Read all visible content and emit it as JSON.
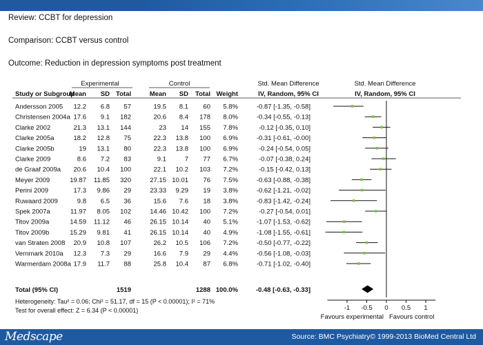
{
  "header": {
    "review": "Review: CCBT for depression",
    "comparison": "Comparison: CCBT versus control",
    "outcome": "Outcome: Reduction in depression symptoms post treatment"
  },
  "table": {
    "group_experimental": "Experimental",
    "group_control": "Control",
    "smd_title": "Std. Mean Difference",
    "smd_subtitle": "IV, Random, 95% CI",
    "plot_title": "Std. Mean Difference",
    "plot_subtitle": "IV, Random, 95% CI",
    "columns": [
      "Study or Subgroup",
      "Mean",
      "SD",
      "Total",
      "Mean",
      "SD",
      "Total",
      "Weight"
    ]
  },
  "chart_data": {
    "type": "forest",
    "studies": [
      {
        "name": "Andersson 2005",
        "exp_mean": "12.2",
        "exp_sd": "6.8",
        "exp_total": "57",
        "ctl_mean": "19.5",
        "ctl_sd": "8.1",
        "ctl_total": "60",
        "weight": "5.8%",
        "ci_text": "-0.87 [-1.35, -0.58]",
        "smd": -0.87,
        "lo": -1.35,
        "hi": -0.58
      },
      {
        "name": "Christensen 2004a",
        "exp_mean": "17.6",
        "exp_sd": "9.1",
        "exp_total": "182",
        "ctl_mean": "20.6",
        "ctl_sd": "8.4",
        "ctl_total": "178",
        "weight": "8.0%",
        "ci_text": "-0.34 [-0.55, -0.13]",
        "smd": -0.34,
        "lo": -0.55,
        "hi": -0.13
      },
      {
        "name": "Clarke 2002",
        "exp_mean": "21.3",
        "exp_sd": "13.1",
        "exp_total": "144",
        "ctl_mean": "23",
        "ctl_sd": "14",
        "ctl_total": "155",
        "weight": "7.8%",
        "ci_text": "-0.12 [-0.35, 0.10]",
        "smd": -0.12,
        "lo": -0.35,
        "hi": 0.1
      },
      {
        "name": "Clarke 2005a",
        "exp_mean": "18.2",
        "exp_sd": "12.8",
        "exp_total": "75",
        "ctl_mean": "22.3",
        "ctl_sd": "13.8",
        "ctl_total": "100",
        "weight": "6.9%",
        "ci_text": "-0.31 [-0.61, -0.00]",
        "smd": -0.31,
        "lo": -0.61,
        "hi": 0.0
      },
      {
        "name": "Clarke 2005b",
        "exp_mean": "19",
        "exp_sd": "13.1",
        "exp_total": "80",
        "ctl_mean": "22.3",
        "ctl_sd": "13.8",
        "ctl_total": "100",
        "weight": "6.9%",
        "ci_text": "-0.24 [-0.54, 0.05]",
        "smd": -0.24,
        "lo": -0.54,
        "hi": 0.05
      },
      {
        "name": "Clarke 2009",
        "exp_mean": "8.6",
        "exp_sd": "7.2",
        "exp_total": "83",
        "ctl_mean": "9.1",
        "ctl_sd": "7",
        "ctl_total": "77",
        "weight": "6.7%",
        "ci_text": "-0.07 [-0.38, 0.24]",
        "smd": -0.07,
        "lo": -0.38,
        "hi": 0.24
      },
      {
        "name": "de Graaf 2009a",
        "exp_mean": "20.6",
        "exp_sd": "10.4",
        "exp_total": "100",
        "ctl_mean": "22.1",
        "ctl_sd": "10.2",
        "ctl_total": "103",
        "weight": "7.2%",
        "ci_text": "-0.15 [-0.42, 0.13]",
        "smd": -0.15,
        "lo": -0.42,
        "hi": 0.13
      },
      {
        "name": "Meyer 2009",
        "exp_mean": "19.87",
        "exp_sd": "11.85",
        "exp_total": "320",
        "ctl_mean": "27.15",
        "ctl_sd": "10.01",
        "ctl_total": "76",
        "weight": "7.5%",
        "ci_text": "-0.63 [-0.88, -0.38]",
        "smd": -0.63,
        "lo": -0.88,
        "hi": -0.38
      },
      {
        "name": "Perini 2009",
        "exp_mean": "17.3",
        "exp_sd": "9.86",
        "exp_total": "29",
        "ctl_mean": "23.33",
        "ctl_sd": "9.29",
        "ctl_total": "19",
        "weight": "3.8%",
        "ci_text": "-0.62 [-1.21, -0.02]",
        "smd": -0.62,
        "lo": -1.21,
        "hi": -0.02
      },
      {
        "name": "Ruwaard 2009",
        "exp_mean": "9.8",
        "exp_sd": "6.5",
        "exp_total": "36",
        "ctl_mean": "15.6",
        "ctl_sd": "7.6",
        "ctl_total": "18",
        "weight": "3.8%",
        "ci_text": "-0.83 [-1.42, -0.24]",
        "smd": -0.83,
        "lo": -1.42,
        "hi": -0.24
      },
      {
        "name": "Spek 2007a",
        "exp_mean": "11.97",
        "exp_sd": "8.05",
        "exp_total": "102",
        "ctl_mean": "14.46",
        "ctl_sd": "10.42",
        "ctl_total": "100",
        "weight": "7.2%",
        "ci_text": "-0.27 [-0.54, 0.01]",
        "smd": -0.27,
        "lo": -0.54,
        "hi": 0.01
      },
      {
        "name": "Titov 2009a",
        "exp_mean": "14.59",
        "exp_sd": "11.12",
        "exp_total": "46",
        "ctl_mean": "26.15",
        "ctl_sd": "10.14",
        "ctl_total": "40",
        "weight": "5.1%",
        "ci_text": "-1.07 [-1.53, -0.62]",
        "smd": -1.07,
        "lo": -1.53,
        "hi": -0.62
      },
      {
        "name": "Titov 2009b",
        "exp_mean": "15.29",
        "exp_sd": "9.81",
        "exp_total": "41",
        "ctl_mean": "26.15",
        "ctl_sd": "10.14",
        "ctl_total": "40",
        "weight": "4.9%",
        "ci_text": "-1.08 [-1.55, -0.61]",
        "smd": -1.08,
        "lo": -1.55,
        "hi": -0.61
      },
      {
        "name": "van Straten 2008",
        "exp_mean": "20.9",
        "exp_sd": "10.8",
        "exp_total": "107",
        "ctl_mean": "26.2",
        "ctl_sd": "10.5",
        "ctl_total": "106",
        "weight": "7.2%",
        "ci_text": "-0.50 [-0.77, -0.22]",
        "smd": -0.5,
        "lo": -0.77,
        "hi": -0.22
      },
      {
        "name": "Vernmark 2010a",
        "exp_mean": "12.3",
        "exp_sd": "7.3",
        "exp_total": "29",
        "ctl_mean": "16.6",
        "ctl_sd": "7.9",
        "ctl_total": "29",
        "weight": "4.4%",
        "ci_text": "-0.56 [-1.08, -0.03]",
        "smd": -0.56,
        "lo": -1.08,
        "hi": -0.03
      },
      {
        "name": "Warmerdam 2008a",
        "exp_mean": "17.9",
        "exp_sd": "11.7",
        "exp_total": "88",
        "ctl_mean": "25.8",
        "ctl_sd": "10.4",
        "ctl_total": "87",
        "weight": "6.8%",
        "ci_text": "-0.71 [-1.02, -0.40]",
        "smd": -0.71,
        "lo": -1.02,
        "hi": -0.4
      }
    ],
    "total": {
      "name": "Total (95% CI)",
      "exp_total": "1519",
      "ctl_total": "1288",
      "weight": "100.0%",
      "ci_text": "-0.48 [-0.63, -0.33]",
      "smd": -0.48,
      "lo": -0.63,
      "hi": -0.33
    },
    "heterogeneity": "Heterogeneity: Tau² = 0.06; Chi² = 51.17, df = 15 (P < 0.00001); I² = 71%",
    "overall_effect": "Test for overall effect: Z = 6.34 (P < 0.00001)",
    "xlim": [
      -1.5,
      1.25
    ],
    "xticks": [
      -1,
      -0.5,
      0,
      0.5,
      1
    ],
    "xtick_labels": [
      "-1",
      "-0.5",
      "0",
      "0.5",
      "1"
    ],
    "favours_left": "Favours experimental",
    "favours_right": "Favours control",
    "colors": {
      "point": "#7dc243",
      "line": "#111111",
      "diamond": "#000000"
    }
  },
  "footer": {
    "logo": "Medscape",
    "source": "Source: BMC Psychiatry© 1999-2013 BioMed Central Ltd"
  }
}
